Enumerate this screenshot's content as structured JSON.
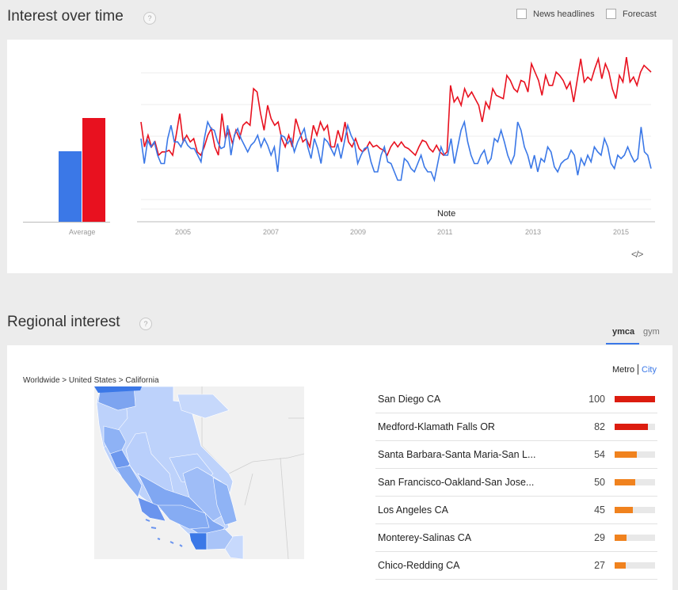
{
  "interest": {
    "title": "Interest over time",
    "help_glyph": "?",
    "news_label": "News headlines",
    "forecast_label": "Forecast",
    "average_label": "Average",
    "note_label": "Note",
    "embed_glyph": "</>",
    "chart_data": {
      "type": "line",
      "x_ticks": [
        "2005",
        "2007",
        "2009",
        "2011",
        "2013",
        "2015"
      ],
      "ylim": [
        0,
        100
      ],
      "average_bars": {
        "blue": 48,
        "red": 71
      },
      "series": [
        {
          "color": "#e8111f",
          "values": [
            60,
            45,
            52,
            45,
            48,
            40,
            42,
            42,
            43,
            40,
            52,
            65,
            48,
            52,
            48,
            50,
            42,
            40,
            45,
            52,
            56,
            45,
            40,
            65,
            50,
            55,
            47,
            55,
            50,
            58,
            60,
            58,
            80,
            78,
            65,
            55,
            70,
            62,
            58,
            60,
            50,
            45,
            52,
            45,
            62,
            55,
            48,
            50,
            45,
            58,
            52,
            60,
            55,
            58,
            45,
            45,
            55,
            48,
            60,
            48,
            45,
            50,
            44,
            42,
            44,
            48,
            45,
            46,
            44,
            43,
            40,
            45,
            48,
            45,
            48,
            45,
            44,
            42,
            40,
            45,
            49,
            48,
            44,
            42,
            46,
            42,
            40,
            42,
            82,
            72,
            75,
            70,
            80,
            75,
            78,
            74,
            70,
            60,
            72,
            68,
            80,
            76,
            75,
            74,
            88,
            85,
            80,
            78,
            85,
            84,
            78,
            95,
            90,
            85,
            76,
            88,
            82,
            82,
            90,
            88,
            85,
            80,
            84,
            72,
            85,
            98,
            84,
            87,
            85,
            92,
            98,
            86,
            95,
            90,
            80,
            74,
            88,
            84,
            99,
            84,
            87,
            82,
            90,
            94,
            92,
            90
          ]
        },
        {
          "color": "#3b78e7",
          "values": [
            50,
            35,
            49,
            45,
            48,
            40,
            35,
            35,
            50,
            58,
            48,
            48,
            45,
            50,
            46,
            44,
            44,
            40,
            36,
            50,
            60,
            56,
            55,
            48,
            44,
            45,
            58,
            40,
            52,
            56,
            50,
            46,
            42,
            46,
            48,
            52,
            45,
            50,
            46,
            40,
            45,
            30,
            52,
            51,
            47,
            50,
            42,
            48,
            52,
            56,
            45,
            38,
            50,
            44,
            35,
            50,
            48,
            44,
            40,
            47,
            38,
            48,
            58,
            52,
            48,
            35,
            40,
            44,
            45,
            36,
            30,
            30,
            40,
            45,
            36,
            35,
            30,
            25,
            25,
            38,
            36,
            32,
            30,
            35,
            40,
            33,
            30,
            30,
            25,
            35,
            45,
            40,
            40,
            50,
            35,
            45,
            55,
            60,
            48,
            40,
            35,
            35,
            40,
            43,
            35,
            38,
            50,
            48,
            55,
            48,
            40,
            35,
            40,
            60,
            55,
            45,
            40,
            32,
            40,
            30,
            38,
            36,
            45,
            42,
            33,
            30,
            35,
            37,
            38,
            43,
            40,
            28,
            38,
            34,
            40,
            36,
            45,
            42,
            40,
            50,
            45,
            35,
            32,
            40,
            38,
            40,
            45,
            40,
            36,
            38,
            57,
            42,
            40,
            32
          ]
        }
      ]
    }
  },
  "regional": {
    "title": "Regional interest",
    "help_glyph": "?",
    "tabs": [
      {
        "label": "ymca"
      },
      {
        "label": "gym"
      }
    ],
    "metro_label": "Metro",
    "city_label": "City",
    "breadcrumb": "Worldwide > United States > California",
    "rows": [
      {
        "label": "San Diego CA",
        "value": "100",
        "pct": 100,
        "color": "#dc1c0f"
      },
      {
        "label": "Medford-Klamath Falls OR",
        "value": "82",
        "pct": 82,
        "color": "#dc1c0f"
      },
      {
        "label": "Santa Barbara-Santa Maria-San L...",
        "value": "54",
        "pct": 54,
        "color": "#f0821e"
      },
      {
        "label": "San Francisco-Oakland-San Jose...",
        "value": "50",
        "pct": 50,
        "color": "#f0821e"
      },
      {
        "label": "Los Angeles CA",
        "value": "45",
        "pct": 45,
        "color": "#f0821e"
      },
      {
        "label": "Monterey-Salinas CA",
        "value": "29",
        "pct": 29,
        "color": "#f0821e"
      },
      {
        "label": "Chico-Redding CA",
        "value": "27",
        "pct": 27,
        "color": "#f0821e"
      }
    ]
  }
}
